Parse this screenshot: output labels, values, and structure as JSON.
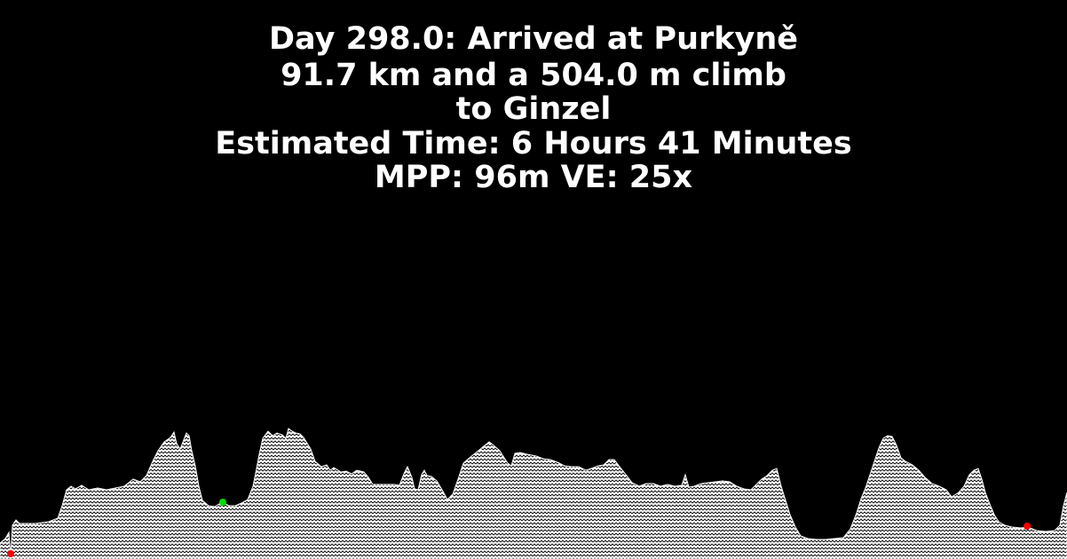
{
  "header": {
    "day_line": "Day 298.0: Arrived at Purkyně",
    "distance_line": "91.7 km and a 504.0 m climb",
    "destination_line": "to Ginzel",
    "time_line": "Estimated Time: 6 Hours 41 Minutes",
    "scale_line": "MPP: 96m VE: 25x"
  },
  "colors": {
    "background": "#000000",
    "text": "#ffffff",
    "terrain_fill": "#ffffff",
    "terrain_hatch": "#000000",
    "start_marker": "#ff0000",
    "current_marker": "#00dd00",
    "end_marker": "#ff0000"
  },
  "profile": {
    "markers": [
      {
        "name": "start-marker",
        "color": "#ff0000"
      },
      {
        "name": "current-position-marker",
        "color": "#00dd00"
      },
      {
        "name": "end-marker",
        "color": "#ff0000"
      }
    ]
  }
}
